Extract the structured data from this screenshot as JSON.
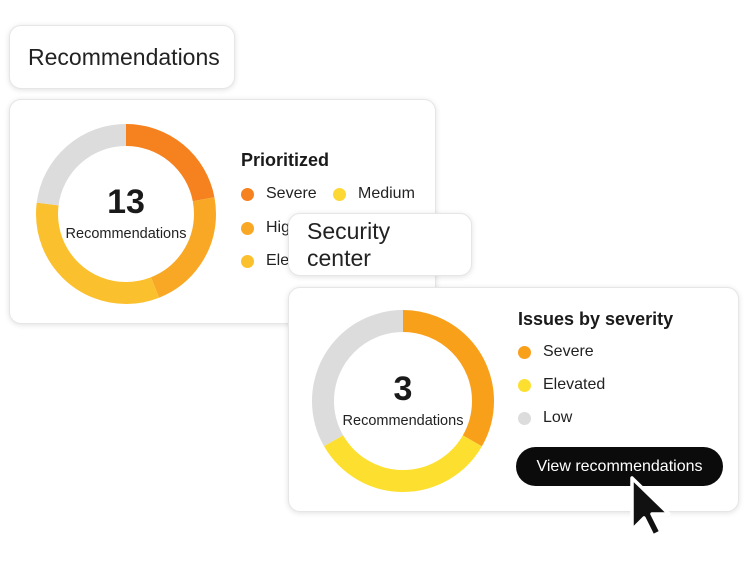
{
  "recommendations_panel": {
    "title": "Recommendations",
    "count": "13",
    "count_label": "Recommendations",
    "legend_title": "Prioritized",
    "legend": [
      {
        "label": "Severe",
        "color": "#f5821f"
      },
      {
        "label": "Medium",
        "color": "#fdd835"
      },
      {
        "label": "High",
        "color": "#f9a825"
      },
      {
        "label": "Elevated",
        "color": "#fbc02d"
      }
    ],
    "donut_segments": [
      {
        "name": "severe",
        "fraction": 0.22,
        "color": "#f5821f"
      },
      {
        "name": "high",
        "fraction": 0.22,
        "color": "#f9a825"
      },
      {
        "name": "elevated",
        "fraction": 0.33,
        "color": "#fbc02d"
      },
      {
        "name": "low",
        "fraction": 0.23,
        "color": "#dcdcdc"
      }
    ]
  },
  "security_panel": {
    "title": "Security center",
    "count": "3",
    "count_label": "Recommendations",
    "legend_title": "Issues by severity",
    "legend": [
      {
        "label": "Severe",
        "color": "#f9a01b"
      },
      {
        "label": "Elevated",
        "color": "#fde02f"
      },
      {
        "label": "Low",
        "color": "#dcdcdc"
      }
    ],
    "donut_segments": [
      {
        "name": "severe",
        "fraction": 0.333,
        "color": "#f9a01b"
      },
      {
        "name": "elevated",
        "fraction": 0.334,
        "color": "#fde02f"
      },
      {
        "name": "low",
        "fraction": 0.333,
        "color": "#dcdcdc"
      }
    ],
    "cta_label": "View recommendations"
  },
  "icons": {
    "cursor": "pointer-arrow-icon"
  }
}
